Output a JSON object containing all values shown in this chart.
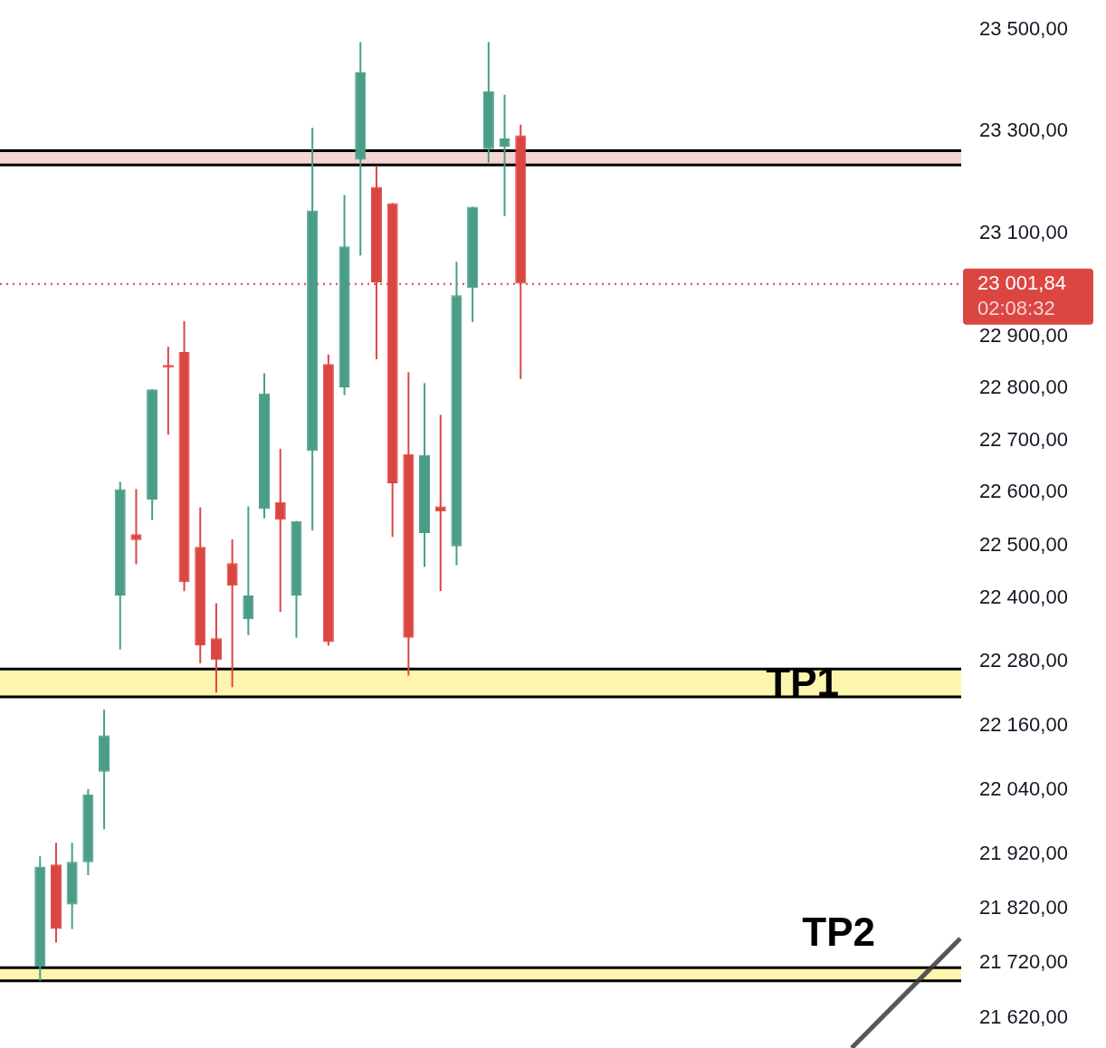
{
  "chart_data": {
    "type": "candlestick",
    "categories": [
      null,
      null,
      null,
      null,
      null,
      null,
      null,
      null,
      null,
      null,
      null,
      null,
      null,
      null,
      null,
      null,
      null,
      null,
      null,
      null,
      null,
      null,
      null,
      null,
      null,
      null,
      null,
      null,
      null,
      null,
      null,
      null,
      null,
      null,
      null,
      null,
      null,
      null,
      null,
      null,
      null,
      null,
      null,
      null,
      null,
      null,
      null,
      null,
      null,
      null,
      null,
      null,
      null,
      null,
      null,
      null,
      null,
      null,
      null,
      null
    ],
    "ohlc": [
      null,
      null,
      [
        21714,
        21917,
        21688,
        21898
      ],
      [
        21902,
        21942,
        21758,
        21783
      ],
      [
        21828,
        21942,
        21783,
        21907
      ],
      [
        21906,
        22042,
        21882,
        22032
      ],
      [
        22074,
        22190,
        21967,
        22142
      ],
      [
        22405,
        22621,
        22303,
        22607
      ],
      [
        22521,
        22607,
        22464,
        22510
      ],
      [
        22587,
        22798,
        22548,
        22798
      ],
      [
        22845,
        22880,
        22711,
        22840
      ],
      [
        22870,
        22930,
        22413,
        22430
      ],
      [
        22497,
        22572,
        22277,
        22311
      ],
      [
        22324,
        22390,
        22222,
        22283
      ],
      [
        22466,
        22511,
        22232,
        22423
      ],
      [
        22360,
        22574,
        22330,
        22405
      ],
      [
        22569,
        22829,
        22551,
        22790
      ],
      [
        22582,
        22684,
        22374,
        22548
      ],
      [
        22405,
        22546,
        22325,
        22546
      ],
      [
        22680,
        23307,
        22528,
        23145
      ],
      [
        22847,
        22865,
        22310,
        22317
      ],
      [
        22802,
        23175,
        22787,
        23075
      ],
      [
        23244,
        23476,
        23057,
        23416
      ],
      [
        23191,
        23232,
        22856,
        23005
      ],
      [
        23159,
        23159,
        22516,
        22618
      ],
      [
        22674,
        22831,
        22254,
        22325
      ],
      [
        22523,
        22810,
        22459,
        22672
      ],
      [
        22574,
        22749,
        22413,
        22564
      ],
      [
        22498,
        23045,
        22462,
        22980
      ],
      [
        22994,
        23152,
        22928,
        23152
      ],
      [
        23265,
        23476,
        23239,
        23379
      ],
      [
        23270,
        23372,
        23134,
        23286
      ],
      [
        23292,
        23313,
        22818,
        23002
      ],
      null,
      null,
      null,
      null,
      null,
      null,
      null,
      null,
      null,
      null,
      null,
      null,
      null,
      null,
      null,
      null,
      null,
      null,
      null,
      null,
      null,
      null,
      null,
      null,
      null,
      null,
      null
    ],
    "colors": [
      null,
      null,
      "#4a9e88",
      "#db4642",
      "#4a9e88",
      "#4a9e88",
      "#4a9e88",
      "#4a9e88",
      "#db4642",
      "#4a9e88",
      "#db4642",
      "#db4642",
      "#db4642",
      "#db4642",
      "#db4642",
      "#4a9e88",
      "#4a9e88",
      "#db4642",
      "#4a9e88",
      "#4a9e88",
      "#db4642",
      "#4a9e88",
      "#4a9e88",
      "#db4642",
      "#db4642",
      "#db4642",
      "#4a9e88",
      "#db4642",
      "#4a9e88",
      "#4a9e88",
      "#4a9e88",
      "#4a9e88",
      "#db4642",
      null,
      null,
      null,
      null,
      null,
      null,
      null,
      null,
      null,
      null,
      null,
      null,
      null,
      null,
      null,
      null,
      null,
      null,
      null,
      null,
      null,
      null,
      null,
      null,
      null,
      null,
      null
    ],
    "log": "y",
    "ylim": [
      21620,
      23500
    ],
    "yticks": [
      {
        "value": 23500,
        "label": "23 500,00"
      },
      {
        "value": 23300,
        "label": "23 300,00"
      },
      {
        "value": 23100,
        "label": "23 100,00"
      },
      {
        "value": 22900,
        "label": "22 900,00"
      },
      {
        "value": 22800,
        "label": "22 800,00"
      },
      {
        "value": 22700,
        "label": "22 700,00"
      },
      {
        "value": 22600,
        "label": "22 600,00"
      },
      {
        "value": 22500,
        "label": "22 500,00"
      },
      {
        "value": 22400,
        "label": "22 400,00"
      },
      {
        "value": 22280,
        "label": "22 280,00"
      },
      {
        "value": 22160,
        "label": "22 160,00"
      },
      {
        "value": 22040,
        "label": "22 040,00"
      },
      {
        "value": 21920,
        "label": "21 920,00"
      },
      {
        "value": 21820,
        "label": "21 820,00"
      },
      {
        "value": 21720,
        "label": "21 720,00"
      },
      {
        "value": 21620,
        "label": "21 620,00"
      }
    ],
    "tick_labels": "y",
    "ref_lines": [
      {
        "axis": "y",
        "value": 23001.84,
        "label": "23 001,84",
        "color": "#db4642",
        "line_style": "dotted"
      }
    ],
    "annotations": [
      "02:08:32"
    ],
    "bands": [
      {
        "axis": "y",
        "from": 23234,
        "to": 23262,
        "color": "#f5d5d3"
      },
      {
        "axis": "y",
        "from": 22214,
        "to": 22266,
        "label": "TP1",
        "color": "#fdf5ad"
      },
      {
        "axis": "y",
        "from": 21688,
        "to": 21712,
        "label": "TP2",
        "color": "#fdf5ad"
      }
    ],
    "legend": false
  }
}
